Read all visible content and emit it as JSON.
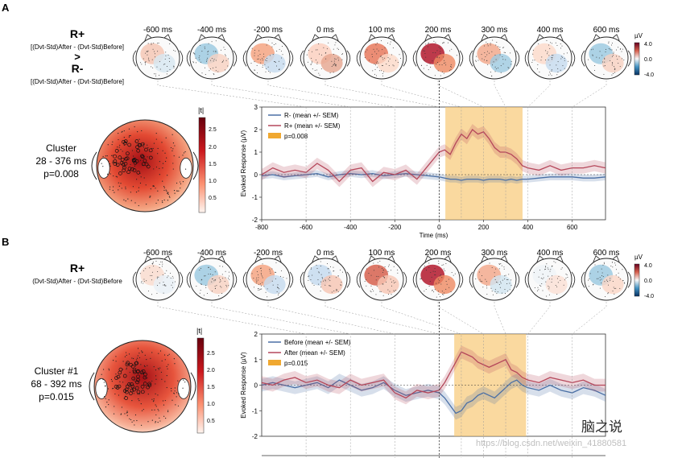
{
  "panel_a": {
    "label": "A",
    "contrast_top": "R+",
    "formula_top": "[(Dvt-Std)After - (Dvt-Std)Before]",
    "gt": ">",
    "contrast_bottom": "R-",
    "formula_bottom": "[(Dvt-Std)After - (Dvt-Std)Before]",
    "time_labels": [
      "-600 ms",
      "-400 ms",
      "-200 ms",
      "0 ms",
      "100 ms",
      "200 ms",
      "300 ms",
      "400 ms",
      "600 ms"
    ],
    "colorbar": {
      "unit": "µV",
      "ticks": [
        "4.0",
        "0.0",
        "-4.0"
      ]
    },
    "cluster": {
      "title": "Cluster",
      "range": "28 - 376 ms",
      "p": "p=0.008"
    },
    "t_colorbar": {
      "label": "|t|",
      "ticks": [
        "2.5",
        "2.0",
        "1.5",
        "1.0",
        "0.5"
      ]
    }
  },
  "panel_b": {
    "label": "B",
    "contrast_top": "R+",
    "formula_top": "(Dvt-Std)After - (Dvt-Std)Before",
    "time_labels": [
      "-600 ms",
      "-400 ms",
      "-200 ms",
      "0 ms",
      "100 ms",
      "200 ms",
      "300 ms",
      "400 ms",
      "600 ms"
    ],
    "colorbar": {
      "unit": "µV",
      "ticks": [
        "4.0",
        "0.0",
        "-4.0"
      ]
    },
    "cluster": {
      "title": "Cluster #1",
      "range": "68 - 392 ms",
      "p": "p=0.015"
    },
    "t_colorbar": {
      "label": "|t|",
      "ticks": [
        "2.5",
        "2.0",
        "1.5",
        "1.0",
        "0.5"
      ]
    }
  },
  "chart_data": [
    {
      "type": "line",
      "title": "",
      "xlabel": "Time (ms)",
      "ylabel": "Evoked Response (µV)",
      "xlim": [
        -800,
        750
      ],
      "ylim": [
        -2,
        3
      ],
      "xticks": [
        -800,
        -600,
        -400,
        -200,
        0,
        200,
        400,
        600
      ],
      "yticks": [
        -2,
        -1,
        0,
        1,
        2,
        3
      ],
      "legend": [
        "R- (mean +/- SEM)",
        "R+ (mean +/- SEM)",
        "p=0.008"
      ],
      "significant_window": [
        28,
        376
      ],
      "x": [
        -800,
        -750,
        -700,
        -650,
        -600,
        -550,
        -500,
        -450,
        -400,
        -350,
        -300,
        -250,
        -200,
        -150,
        -100,
        -50,
        0,
        25,
        50,
        75,
        100,
        125,
        150,
        175,
        200,
        225,
        250,
        275,
        300,
        325,
        350,
        375,
        400,
        450,
        500,
        550,
        600,
        650,
        700,
        750
      ],
      "series": [
        {
          "name": "R- (mean +/- SEM)",
          "color": "#4a6fa5",
          "sem": 0.15,
          "values": [
            -0.05,
            0.0,
            -0.1,
            -0.05,
            0.0,
            0.05,
            -0.1,
            0.0,
            0.05,
            0.0,
            0.05,
            -0.05,
            0.0,
            0.05,
            0.0,
            -0.05,
            -0.1,
            -0.15,
            -0.2,
            -0.2,
            -0.25,
            -0.2,
            -0.2,
            -0.2,
            -0.25,
            -0.2,
            -0.2,
            -0.2,
            -0.25,
            -0.2,
            -0.25,
            -0.2,
            -0.2,
            -0.15,
            -0.1,
            -0.1,
            -0.1,
            -0.15,
            -0.15,
            -0.1
          ]
        },
        {
          "name": "R+ (mean +/- SEM)",
          "color": "#b5475a",
          "sem": 0.25,
          "values": [
            0.0,
            0.3,
            0.1,
            0.2,
            0.1,
            0.5,
            0.2,
            -0.3,
            0.2,
            0.3,
            -0.3,
            0.1,
            0.0,
            0.2,
            -0.2,
            0.4,
            1.0,
            1.1,
            0.9,
            1.4,
            1.8,
            1.6,
            2.0,
            1.8,
            1.9,
            1.6,
            1.2,
            1.0,
            1.0,
            0.9,
            0.7,
            0.4,
            0.3,
            0.2,
            0.4,
            0.2,
            0.3,
            0.3,
            0.4,
            0.3
          ]
        }
      ]
    },
    {
      "type": "line",
      "title": "",
      "xlabel": "",
      "ylabel": "Evoked Response (µV)",
      "xlim": [
        -800,
        750
      ],
      "ylim": [
        -2,
        2
      ],
      "yticks": [
        -2,
        -1,
        0,
        1,
        2
      ],
      "legend": [
        "Before (mean +/- SEM)",
        "After (mean +/- SEM)",
        "p=0.015"
      ],
      "significant_window": [
        68,
        392
      ],
      "x": [
        -800,
        -750,
        -700,
        -650,
        -600,
        -550,
        -500,
        -450,
        -400,
        -350,
        -300,
        -250,
        -200,
        -150,
        -100,
        -50,
        0,
        25,
        50,
        75,
        100,
        125,
        150,
        175,
        200,
        225,
        250,
        275,
        300,
        325,
        350,
        375,
        400,
        450,
        500,
        550,
        600,
        650,
        700,
        750
      ],
      "series": [
        {
          "name": "Before (mean +/- SEM)",
          "color": "#4a6fa5",
          "sem": 0.25,
          "values": [
            0.0,
            0.1,
            0.0,
            -0.1,
            0.0,
            0.1,
            -0.1,
            0.2,
            0.0,
            -0.2,
            -0.1,
            0.1,
            -0.2,
            -0.4,
            -0.3,
            -0.2,
            -0.3,
            -0.5,
            -0.8,
            -1.1,
            -1.0,
            -0.7,
            -0.6,
            -0.4,
            -0.3,
            -0.4,
            -0.5,
            -0.3,
            -0.1,
            0.1,
            0.2,
            0.0,
            -0.1,
            -0.2,
            0.0,
            -0.2,
            -0.3,
            -0.1,
            -0.2,
            -0.4
          ]
        },
        {
          "name": "After (mean +/- SEM)",
          "color": "#b5475a",
          "sem": 0.25,
          "values": [
            0.1,
            0.0,
            0.2,
            0.3,
            0.1,
            0.2,
            0.0,
            -0.1,
            0.2,
            0.0,
            0.1,
            0.2,
            -0.3,
            -0.5,
            -0.2,
            -0.3,
            -0.2,
            0.1,
            0.5,
            0.9,
            1.3,
            1.2,
            1.1,
            0.9,
            0.8,
            0.7,
            0.8,
            0.9,
            1.0,
            0.6,
            0.5,
            0.3,
            0.2,
            0.1,
            0.3,
            0.2,
            0.1,
            0.2,
            0.0,
            0.0
          ]
        }
      ]
    }
  ],
  "watermark": {
    "logo": "脑之说",
    "url": "https://blog.csdn.net/weixin_41880581"
  }
}
